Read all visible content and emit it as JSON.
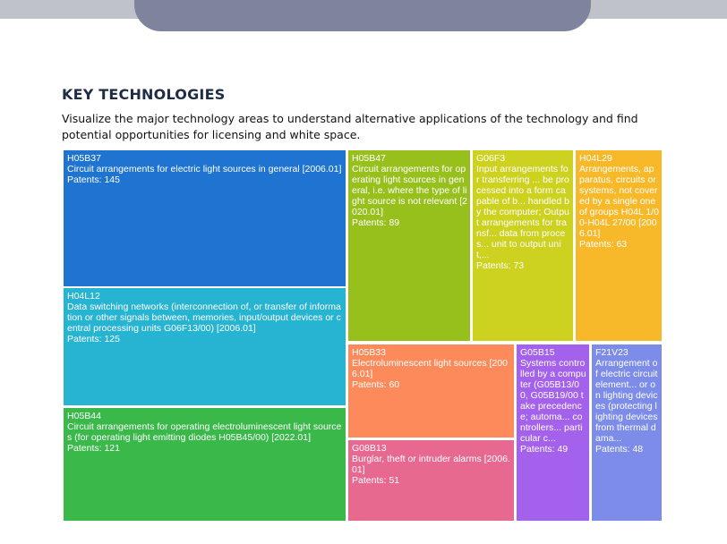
{
  "header": {
    "title": "KEY TECHNOLOGIES",
    "description": "Visualize the major technology areas to understand alternative applications of the technology and find potential opportunities for licensing and white space."
  },
  "treemap": {
    "tiles": [
      {
        "code": "H05B37",
        "desc": "Circuit arrangements for electric light sources in general [2006.01]",
        "patents": "Patents: 145",
        "color": "#1f74d2"
      },
      {
        "code": "H04L12",
        "desc": "Data switching networks (interconnection of, or transfer of information or other signals between, memories, input/output devices or central processing units G06F13/00) [2006.01]",
        "patents": "Patents: 125",
        "color": "#27b4d3"
      },
      {
        "code": "H05B44",
        "desc": "Circuit arrangements for operating electroluminescent light sources (for operating light emitting diodes H05B45/00) [2022.01]",
        "patents": "Patents: 121",
        "color": "#3ab84a"
      },
      {
        "code": "H05B47",
        "desc": "Circuit arrangements for operating light sources in general, i.e. where the type of light source is not relevant [2020.01]",
        "patents": "Patents: 89",
        "color": "#98c01d"
      },
      {
        "code": "G06F3",
        "desc": "Input arrangements for transferring ... be processed into a form capable of b... handled by the computer; Output arrangements for transf... data from proces... unit to output unit,...",
        "patents": "Patents: 73",
        "color": "#cdd11f"
      },
      {
        "code": "H04L29",
        "desc": "Arrangements, apparatus, circuits or systems, not covered by a single one of groups H04L 1/00-H04L 27/00 [2006.01]",
        "patents": "Patents: 63",
        "color": "#f7b92a"
      },
      {
        "code": "H05B33",
        "desc": "Electroluminescent light sources [2006.01]",
        "patents": "Patents: 60",
        "color": "#fd8a5b"
      },
      {
        "code": "G08B13",
        "desc": "Burglar, theft or intruder alarms [2006.01]",
        "patents": "Patents: 51",
        "color": "#e86990"
      },
      {
        "code": "G05B15",
        "desc": "Systems controlled by a computer (G05B13/00, G05B19/00 take precedence; automa... controllers... particular c...",
        "patents": "Patents: 49",
        "color": "#a462ec"
      },
      {
        "code": "F21V23",
        "desc": "Arrangement of electric circuit element... or on lighting devices (protecting lighting devices from thermal dama...",
        "patents": "Patents: 48",
        "color": "#7c8ce8"
      }
    ]
  }
}
